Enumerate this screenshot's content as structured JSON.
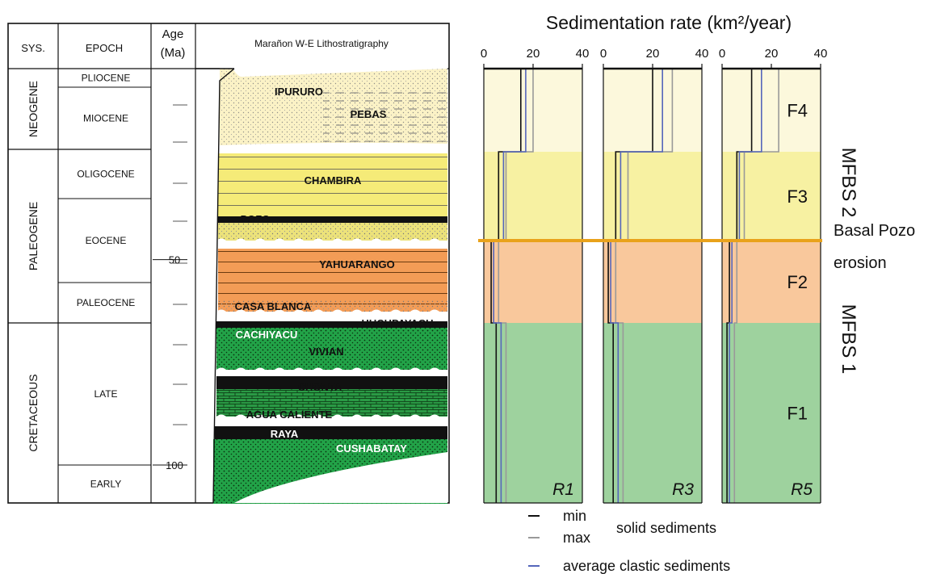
{
  "strat": {
    "headers": {
      "sys": "SYS.",
      "epoch": "EPOCH",
      "age_l1": "Age",
      "age_l2": "(Ma)",
      "litho": "Marañon W-E Lithostratigraphy"
    },
    "systems": [
      {
        "name": "NEOGENE",
        "from": 0,
        "to": 23
      },
      {
        "name": "PALEOGENE",
        "from": 23,
        "to": 66
      },
      {
        "name": "CRETACEOUS",
        "from": 66,
        "to": 110
      }
    ],
    "epochs": [
      {
        "name": "PLIOCENE",
        "from": 0,
        "to": 5
      },
      {
        "name": "MIOCENE",
        "from": 5,
        "to": 23
      },
      {
        "name": "OLIGOCENE",
        "from": 23,
        "to": 34
      },
      {
        "name": "EOCENE",
        "from": 34,
        "to": 56
      },
      {
        "name": "PALEOCENE",
        "from": 56,
        "to": 66
      },
      {
        "name": "LATE",
        "from": 66,
        "to": 100
      },
      {
        "name": "EARLY",
        "from": 100,
        "to": 110
      }
    ],
    "age_labels": [
      {
        "age": 50,
        "text": "50"
      },
      {
        "age": 100,
        "text": "100"
      }
    ],
    "formations": [
      "IPURURO",
      "PEBAS",
      "CHAMBIRA",
      "POZO",
      "YAHUARANGO",
      "CASA BLANCA",
      "HUCHPAYACU",
      "CACHIYACU",
      "VIVIAN",
      "CHONTA",
      "AGUA CALIENTE",
      "RAYA",
      "CUSHABATAY"
    ]
  },
  "chart_data": {
    "type": "line",
    "title": "Sedimentation rate (km²/year)",
    "xlim": [
      0,
      40
    ],
    "xticks": [
      "0",
      "20",
      "40"
    ],
    "facies": [
      {
        "name": "F4",
        "color": "#fcf8dc"
      },
      {
        "name": "F3",
        "color": "#f7f1a2"
      },
      {
        "name": "F2",
        "color": "#f9c89c"
      },
      {
        "name": "F1",
        "color": "#9ed29e"
      }
    ],
    "boundary_label_line1": "Basal Pozo",
    "boundary_label_line2": "erosion",
    "mfbs": [
      "MFBS 2",
      "MFBS 1"
    ],
    "panels": [
      {
        "name": "R1",
        "series": [
          {
            "name": "min",
            "color": "#111111",
            "values": [
              15,
              6,
              3,
              5
            ]
          },
          {
            "name": "max",
            "color": "#999999",
            "values": [
              20,
              9,
              6,
              9
            ]
          },
          {
            "name": "average clastic sediments",
            "color": "#5566bb",
            "values": [
              17,
              8,
              4,
              7
            ]
          }
        ]
      },
      {
        "name": "R3",
        "series": [
          {
            "name": "min",
            "color": "#111111",
            "values": [
              20,
              5,
              2,
              4
            ]
          },
          {
            "name": "max",
            "color": "#999999",
            "values": [
              28,
              10,
              5,
              8
            ]
          },
          {
            "name": "average clastic sediments",
            "color": "#5566bb",
            "values": [
              24,
              7,
              3,
              6
            ]
          }
        ]
      },
      {
        "name": "R5",
        "series": [
          {
            "name": "min",
            "color": "#111111",
            "values": [
              12,
              6,
              3,
              2
            ]
          },
          {
            "name": "max",
            "color": "#999999",
            "values": [
              23,
              9,
              6,
              5
            ]
          },
          {
            "name": "average clastic sediments",
            "color": "#5566bb",
            "values": [
              16,
              7,
              4,
              3
            ]
          }
        ]
      }
    ],
    "legend": {
      "min": "min",
      "max": "max",
      "solid": "solid sediments",
      "avg": "average clastic sediments"
    }
  }
}
